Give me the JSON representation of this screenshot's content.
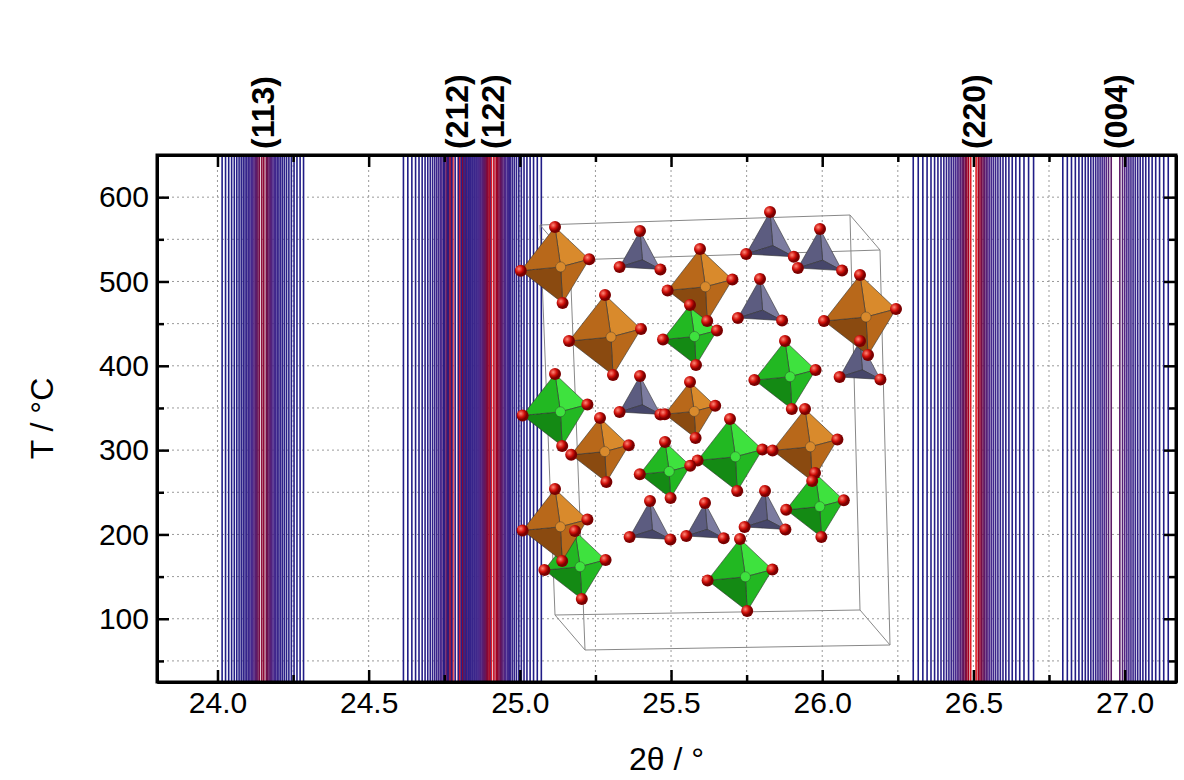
{
  "chart_data": {
    "type": "contour",
    "xlabel": "2θ / °",
    "ylabel": "T / °C",
    "xlim": [
      23.8,
      27.17
    ],
    "ylim": [
      25,
      650
    ],
    "xticks": [
      {
        "value": 24,
        "label": "24.0"
      },
      24.5,
      {
        "value": 25,
        "label": "25.0"
      },
      25.5,
      {
        "value": 26,
        "label": "26.0"
      },
      26.5,
      {
        "value": 27,
        "label": "27.0"
      }
    ],
    "xticks_minor": [
      24.25,
      24.75,
      25.25,
      25.75,
      26.25,
      26.75
    ],
    "yticks": [
      100,
      200,
      300,
      400,
      500,
      600
    ],
    "yticks_minor": [
      50,
      150,
      250,
      350,
      450,
      550
    ],
    "grid": true,
    "peaks": [
      {
        "label": "(113)",
        "position": 24.15,
        "intensity": 0.6,
        "width": 0.025
      },
      {
        "label": "(212)",
        "position": 24.79,
        "intensity": 1.0,
        "width": 0.025
      },
      {
        "label": "(122)",
        "position": 24.91,
        "intensity": 0.85,
        "width": 0.025
      },
      {
        "label": "(220)",
        "position": 26.5,
        "intensity": 0.9,
        "width": 0.03
      },
      {
        "label": "(004)",
        "position": 26.97,
        "intensity": 0.4,
        "width": 0.04
      }
    ]
  }
}
